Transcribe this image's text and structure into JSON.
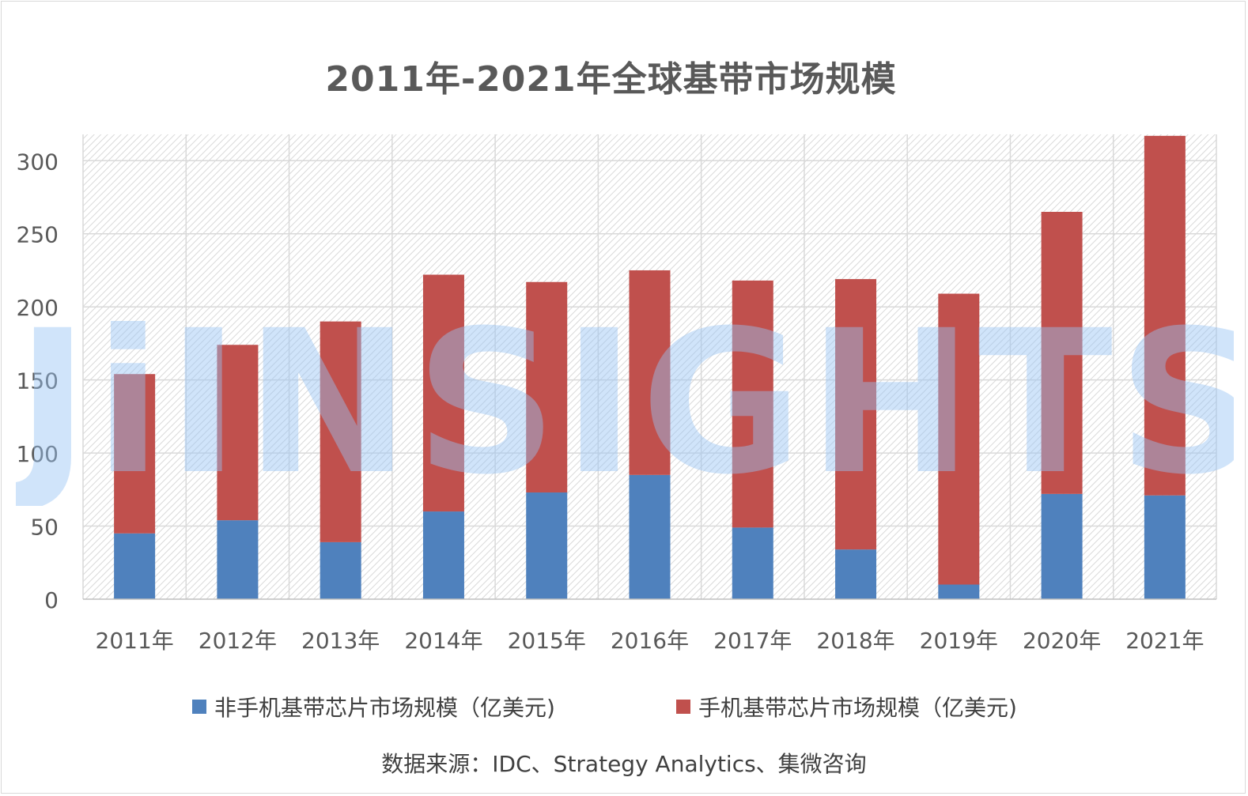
{
  "chart_data": {
    "type": "bar",
    "stacked": true,
    "title": "2011年-2021年全球基带市场规模",
    "categories": [
      "2011年",
      "2012年",
      "2013年",
      "2014年",
      "2015年",
      "2016年",
      "2017年",
      "2018年",
      "2019年",
      "2020年",
      "2021年"
    ],
    "series": [
      {
        "name": "非手机基带芯片市场规模（亿美元)",
        "color": "#4f81bd",
        "values": [
          45,
          54,
          39,
          60,
          73,
          85,
          49,
          34,
          10,
          72,
          71
        ]
      },
      {
        "name": "手机基带芯片市场规模（亿美元)",
        "color": "#c0504d",
        "values": [
          109,
          120,
          151,
          162,
          144,
          140,
          169,
          185,
          199,
          193,
          246
        ]
      }
    ],
    "ylim": [
      0,
      318
    ],
    "yticks": [
      0,
      50,
      100,
      150,
      200,
      250,
      300
    ],
    "grid": true,
    "legend_position": "bottom"
  },
  "watermark": "JiINSIGHTS",
  "source": "数据来源：IDC、Strategy Analytics、集微咨询"
}
